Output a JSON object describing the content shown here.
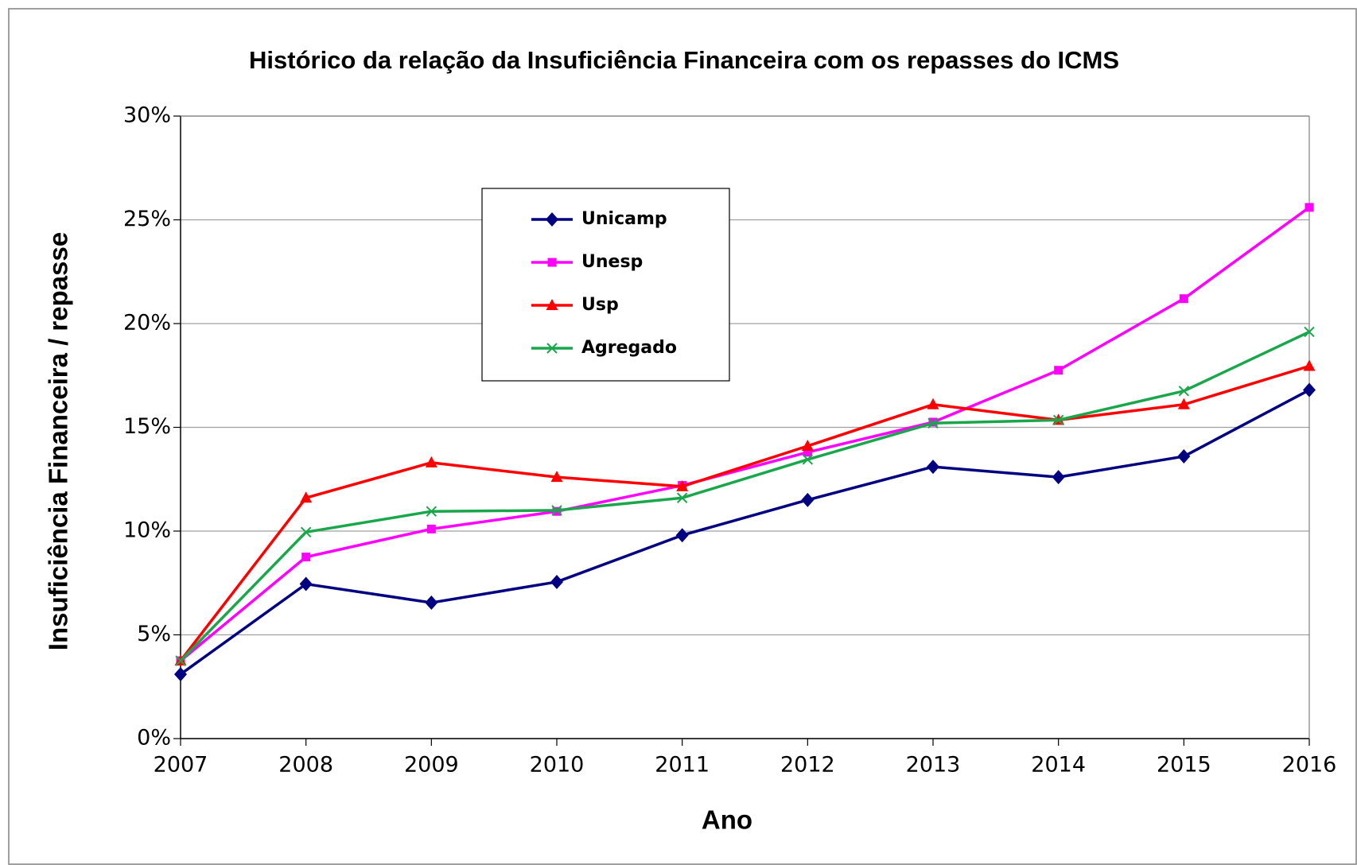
{
  "chart_data": {
    "type": "line",
    "title": "Histórico da relação da Insuficiência Financeira com os repasses do ICMS",
    "x_label": "Ano",
    "y_label": "Insuficiência Financeira / repasse",
    "categories": [
      "2007",
      "2008",
      "2009",
      "2010",
      "2011",
      "2012",
      "2013",
      "2014",
      "2015",
      "2016"
    ],
    "series": [
      {
        "name": "Unicamp",
        "color": "#000080",
        "marker": "diamond",
        "values": [
          3.1,
          7.45,
          6.55,
          7.55,
          9.8,
          11.5,
          13.1,
          12.6,
          13.6,
          16.8
        ]
      },
      {
        "name": "Unesp",
        "color": "#ff00ff",
        "marker": "square",
        "values": [
          3.75,
          8.75,
          10.1,
          10.95,
          12.2,
          13.8,
          15.25,
          17.75,
          21.2,
          25.6
        ]
      },
      {
        "name": "Usp",
        "color": "#ff0000",
        "marker": "triangle",
        "values": [
          3.75,
          11.6,
          13.3,
          12.6,
          12.15,
          14.1,
          16.1,
          15.35,
          16.1,
          17.95
        ]
      },
      {
        "name": "Agregado",
        "color": "#1aa64b",
        "marker": "x",
        "values": [
          3.75,
          9.95,
          10.95,
          11.0,
          11.6,
          13.45,
          15.2,
          15.35,
          16.75,
          19.6
        ]
      }
    ],
    "ylim": [
      0,
      30
    ],
    "yticks": [
      {
        "value": 0,
        "label": "0%"
      },
      {
        "value": 5,
        "label": "5%"
      },
      {
        "value": 10,
        "label": "10%"
      },
      {
        "value": 15,
        "label": "15%"
      },
      {
        "value": 20,
        "label": "20%"
      },
      {
        "value": 25,
        "label": "25%"
      },
      {
        "value": 30,
        "label": "30%"
      }
    ],
    "grid": true,
    "legend": "upper center"
  }
}
